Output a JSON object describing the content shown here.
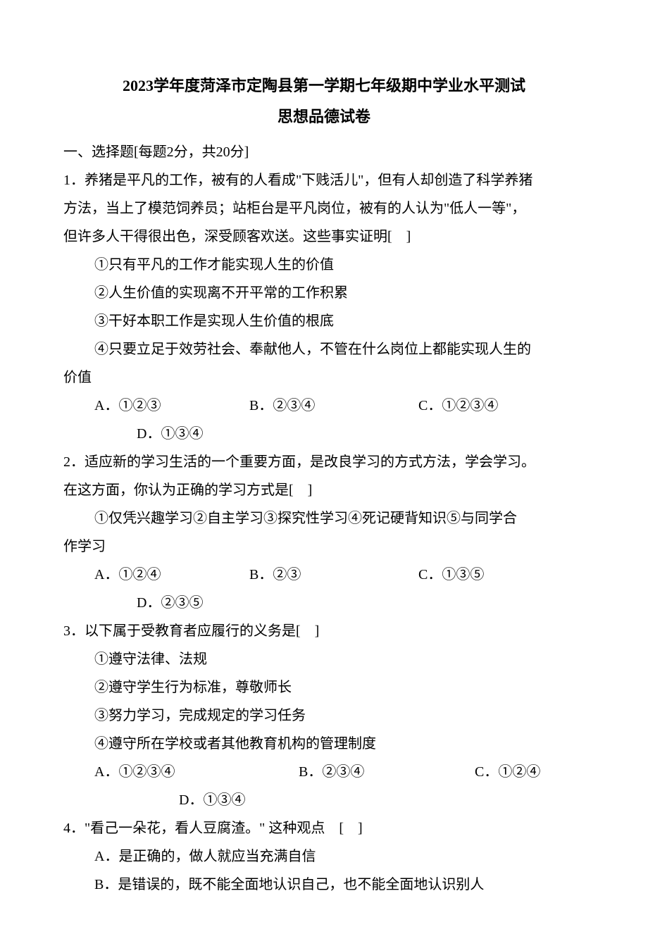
{
  "title1": "2023学年度菏泽市定陶县第一学期七年级期中学业水平测试",
  "title2": "思想品德试卷",
  "section_header": "一、选择题[每题2分，共20分]",
  "q1": {
    "stem_l1": "1．养猪是平凡的工作，被有的人看成\"下贱活儿\"，但有人却创造了科学养猪",
    "stem_l2": "方法，当上了模范饲养员；站柜台是平凡岗位，被有的人认为\"低人一等\"，",
    "stem_l3": "但许多人干得很出色，深受顾客欢送。这些事实证明[　]",
    "s1": "①只有平凡的工作才能实现人生的价值",
    "s2": "②人生价值的实现离不开平常的工作积累",
    "s3": "③干好本职工作是实现人生价值的根底",
    "s4": "④只要立足于效劳社会、奉献他人，不管在什么岗位上都能实现人生的",
    "s4b": "价值",
    "a": "A．①②③",
    "b": "B．②③④",
    "c": "C．①②③④",
    "d": "D．①③④"
  },
  "q2": {
    "stem_l1": "2．适应新的学习生活的一个重要方面，是改良学习的方式方法，学会学习。",
    "stem_l2": "在这方面，你认为正确的学习方式是[　]",
    "s1": "①仅凭兴趣学习②自主学习③探究性学习④死记硬背知识⑤与同学合",
    "s1b": "作学习",
    "a": "A．①②④",
    "b": "B．②③",
    "c": "C．①③⑤",
    "d": "D．②③⑤"
  },
  "q3": {
    "stem_l1": "3．以下属于受教育者应履行的义务是[　]",
    "s1": "①遵守法律、法规",
    "s2": "②遵守学生行为标准，尊敬师长",
    "s3": "③努力学习，完成规定的学习任务",
    "s4": "④遵守所在学校或者其他教育机构的管理制度",
    "a": "A．①②③④",
    "b": "B．②③④",
    "c": "C．①②④",
    "d": "D．①③④"
  },
  "q4": {
    "stem_l1": "4．\"看己一朵花，看人豆腐渣。\" 这种观点　[　]",
    "a": "A．是正确的，做人就应当充满自信",
    "b": "B．是错误的，既不能全面地认识自己，也不能全面地认识别人"
  }
}
